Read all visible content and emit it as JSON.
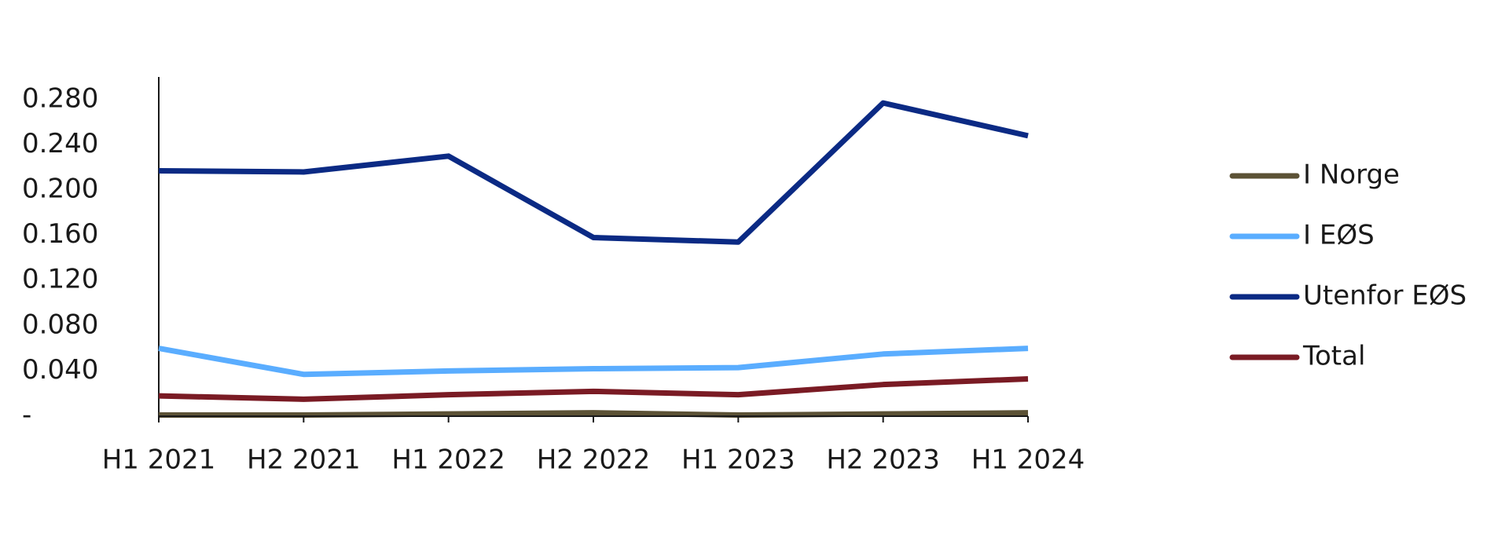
{
  "chart_data": {
    "type": "line",
    "categories": [
      "H1 2021",
      "H2 2021",
      "H1 2022",
      "H2 2022",
      "H1 2023",
      "H2 2023",
      "H1 2024"
    ],
    "series": [
      {
        "name": "I Norge",
        "color": "#5c5236",
        "values": [
          0.001,
          0.001,
          0.002,
          0.003,
          0.001,
          0.002,
          0.003
        ]
      },
      {
        "name": "I EØS",
        "color": "#5aadff",
        "values": [
          0.06,
          0.037,
          0.04,
          0.042,
          0.043,
          0.055,
          0.06
        ]
      },
      {
        "name": "Utenfor EØS",
        "color": "#0b2a84",
        "values": [
          0.217,
          0.216,
          0.23,
          0.158,
          0.154,
          0.277,
          0.248
        ]
      },
      {
        "name": "Total",
        "color": "#7a1b24",
        "values": [
          0.018,
          0.015,
          0.019,
          0.022,
          0.019,
          0.028,
          0.033
        ]
      }
    ],
    "ylim": [
      0,
      0.3
    ],
    "yticks": [
      {
        "value": 0,
        "label": "-"
      },
      {
        "value": 0.04,
        "label": "0.040"
      },
      {
        "value": 0.08,
        "label": "0.080"
      },
      {
        "value": 0.12,
        "label": "0.120"
      },
      {
        "value": 0.16,
        "label": "0.160"
      },
      {
        "value": 0.2,
        "label": "0.200"
      },
      {
        "value": 0.24,
        "label": "0.240"
      },
      {
        "value": 0.28,
        "label": "0.280"
      }
    ],
    "legend": "right"
  }
}
